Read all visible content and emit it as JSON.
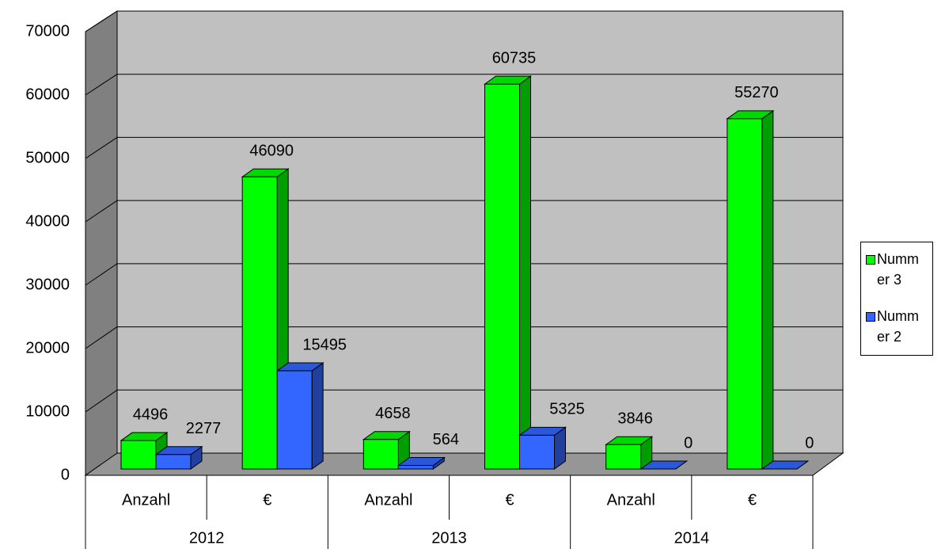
{
  "chart_data": {
    "type": "bar3d",
    "categories": [
      "Anzahl",
      "€",
      "Anzahl",
      "€",
      "Anzahl",
      "€"
    ],
    "category_groups": [
      "2012",
      "2013",
      "2014"
    ],
    "series": [
      {
        "name": "Nummer 3",
        "color": "#00ff00",
        "values": [
          4496,
          46090,
          4658,
          60735,
          3846,
          55270
        ]
      },
      {
        "name": "Nummer 2",
        "color": "#3366ff",
        "values": [
          2277,
          15495,
          564,
          5325,
          0,
          0
        ]
      }
    ],
    "ylim": [
      0,
      70000
    ],
    "yticks": [
      0,
      10000,
      20000,
      30000,
      40000,
      50000,
      60000,
      70000
    ],
    "grid": true,
    "legend": "right"
  }
}
